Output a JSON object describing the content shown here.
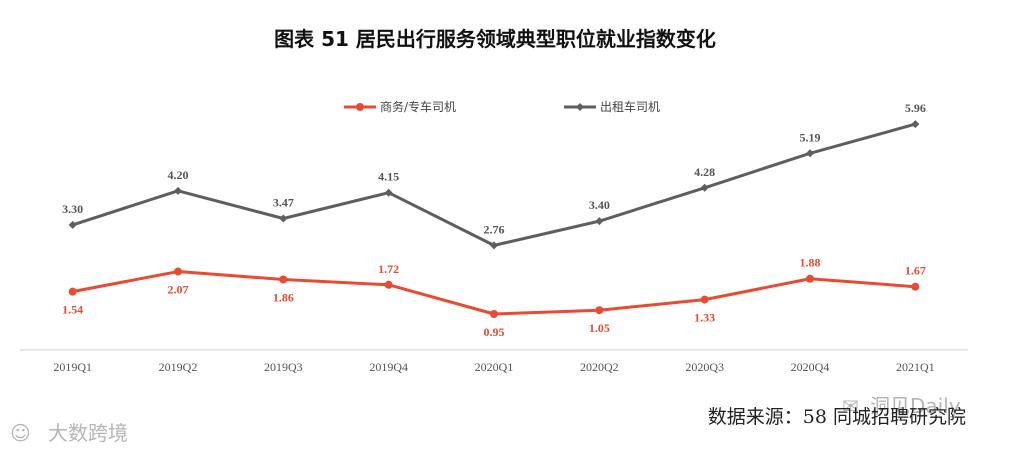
{
  "chart_data": {
    "type": "line",
    "title": "图表  51    居民出行服务领域典型职位就业指数变化",
    "categories": [
      "2019Q1",
      "2019Q2",
      "2019Q3",
      "2019Q4",
      "2020Q1",
      "2020Q2",
      "2020Q3",
      "2020Q4",
      "2021Q1"
    ],
    "series": [
      {
        "name": "商务/专车司机",
        "color": "#e84a32",
        "values": [
          1.54,
          2.07,
          1.86,
          1.72,
          0.95,
          1.05,
          1.33,
          1.88,
          1.67
        ]
      },
      {
        "name": "出租车司机",
        "color": "#5e5e5e",
        "values": [
          3.3,
          4.2,
          3.47,
          4.15,
          2.76,
          3.4,
          4.28,
          5.19,
          5.96
        ]
      }
    ],
    "ylim": [
      0,
      7
    ],
    "xlabel": "",
    "ylabel": "",
    "grid": false,
    "legend": "top-center"
  },
  "source": "数据来源：58 同城招聘研究院",
  "watermarks": {
    "bottom_left": "大数跨境",
    "bottom_right": "洞见Daily"
  },
  "colors": {
    "red": "#e84a32",
    "gray": "#5e5e5e",
    "axis": "#cfcfcf"
  }
}
